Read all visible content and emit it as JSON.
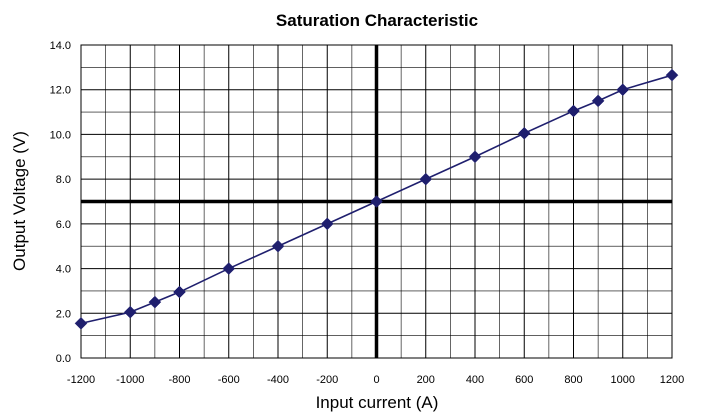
{
  "chart_data": {
    "type": "line",
    "title": "Saturation Characteristic",
    "xlabel": "Input current (A)",
    "ylabel": "Output Voltage (V)",
    "xlim": [
      -1200,
      1200
    ],
    "ylim": [
      0,
      14
    ],
    "x_ticks": [
      -1200,
      -1000,
      -800,
      -600,
      -400,
      -200,
      0,
      200,
      400,
      600,
      800,
      1000,
      1200
    ],
    "x_tick_labels": [
      "-1200",
      "-1000",
      "-800",
      "-600",
      "-400",
      "-200",
      "0",
      "200",
      "400",
      "600",
      "800",
      "1000",
      "1200"
    ],
    "y_ticks": [
      0,
      2,
      4,
      6,
      8,
      10,
      12,
      14
    ],
    "y_tick_labels": [
      "0.0",
      "2.0",
      "4.0",
      "6.0",
      "8.0",
      "10.0",
      "12.0",
      "14.0"
    ],
    "x_minor_gridlines": [
      -1100,
      -900,
      -700,
      -500,
      -300,
      -100,
      100,
      300,
      500,
      700,
      900,
      1100
    ],
    "y_minor_gridlines": [
      1,
      3,
      5,
      7,
      9,
      11,
      13
    ],
    "grid": true,
    "legend": "none",
    "highlight_axes": {
      "x": 0,
      "y": 7
    },
    "series": [
      {
        "color": "#1f1f6e",
        "marker": "diamond",
        "x": [
          -1200,
          -1000,
          -900,
          -800,
          -600,
          -400,
          -200,
          0,
          200,
          400,
          600,
          800,
          900,
          1000,
          1200
        ],
        "y": [
          1.55,
          2.05,
          2.5,
          2.95,
          4.0,
          5.0,
          6.0,
          7.0,
          8.0,
          9.0,
          10.05,
          11.05,
          11.5,
          12.0,
          12.65
        ]
      }
    ]
  }
}
